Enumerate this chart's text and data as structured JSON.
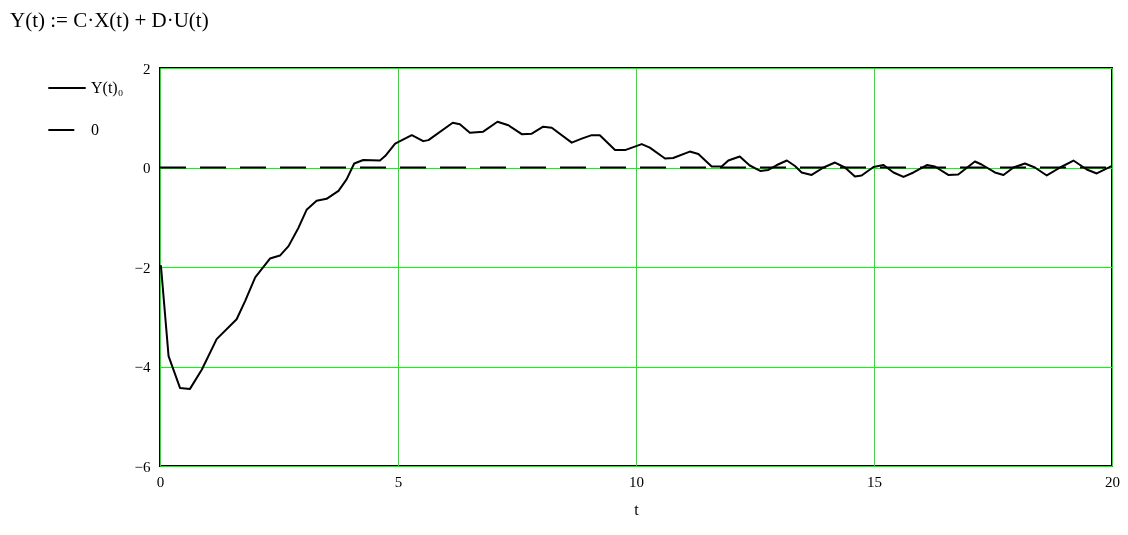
{
  "chart_data": {
    "type": "line",
    "title": "Y(t) := C·X(t) + D·U(t)",
    "xlabel": "t",
    "xlim": [
      0,
      20
    ],
    "xticks": [
      0,
      5,
      10,
      15,
      20
    ],
    "ylim": [
      -6,
      2
    ],
    "yticks": [
      -6,
      -4,
      -2,
      0,
      2
    ],
    "grid": true,
    "legend": "left",
    "series": [
      {
        "name": "Y(t)₀",
        "color": "#000000",
        "line_style": "solid",
        "x": [
          0,
          0.02,
          0.18,
          0.42,
          0.63,
          0.88,
          1.19,
          1.61,
          1.79,
          2.0,
          2.31,
          2.52,
          2.7,
          2.91,
          3.08,
          3.29,
          3.5,
          3.75,
          3.92,
          4.08,
          4.27,
          4.62,
          4.73,
          4.94,
          5.29,
          5.53,
          5.64,
          6.15,
          6.3,
          6.51,
          6.79,
          7.09,
          7.32,
          7.6,
          7.81,
          8.05,
          8.23,
          8.65,
          8.86,
          9.07,
          9.24,
          9.56,
          9.77,
          10.12,
          10.29,
          10.61,
          10.78,
          11.13,
          11.31,
          11.59,
          11.8,
          11.94,
          12.18,
          12.39,
          12.61,
          12.78,
          12.96,
          13.17,
          13.34,
          13.48,
          13.69,
          13.94,
          14.18,
          14.39,
          14.6,
          14.74,
          14.99,
          15.2,
          15.41,
          15.62,
          15.83,
          16.11,
          16.28,
          16.56,
          16.77,
          17.12,
          17.26,
          17.54,
          17.72,
          17.93,
          18.17,
          18.38,
          18.63,
          18.91,
          19.19,
          19.47,
          19.68,
          20.0
        ],
        "values": [
          -2,
          -1.98,
          -3.79,
          -4.43,
          -4.45,
          -4.06,
          -3.45,
          -3.05,
          -2.68,
          -2.21,
          -1.83,
          -1.77,
          -1.58,
          -1.21,
          -0.85,
          -0.67,
          -0.63,
          -0.47,
          -0.24,
          0.08,
          0.15,
          0.14,
          0.23,
          0.48,
          0.65,
          0.53,
          0.55,
          0.9,
          0.87,
          0.7,
          0.72,
          0.92,
          0.85,
          0.67,
          0.68,
          0.82,
          0.8,
          0.5,
          0.58,
          0.65,
          0.65,
          0.35,
          0.35,
          0.47,
          0.4,
          0.18,
          0.19,
          0.32,
          0.27,
          0.02,
          0.02,
          0.14,
          0.22,
          0.04,
          -0.07,
          -0.05,
          0.05,
          0.14,
          0.03,
          -0.1,
          -0.15,
          0,
          0.1,
          0,
          -0.18,
          -0.16,
          0.01,
          0.05,
          -0.1,
          -0.19,
          -0.1,
          0.05,
          0.02,
          -0.15,
          -0.14,
          0.12,
          0.06,
          -0.1,
          -0.15,
          0,
          0.08,
          0,
          -0.16,
          0,
          0.14,
          -0.04,
          -0.12,
          0.03
        ]
      },
      {
        "name": "0",
        "color": "#000000",
        "line_style": "dashed",
        "x": [
          0,
          20
        ],
        "values": [
          0,
          0
        ]
      }
    ]
  }
}
